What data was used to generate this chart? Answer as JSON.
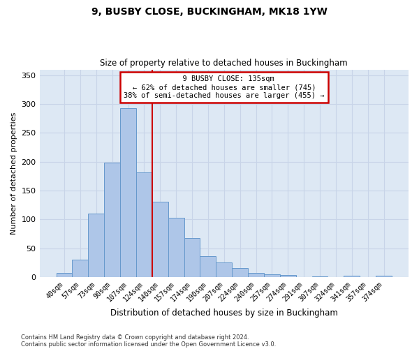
{
  "title_line1": "9, BUSBY CLOSE, BUCKINGHAM, MK18 1YW",
  "title_line2": "Size of property relative to detached houses in Buckingham",
  "xlabel": "Distribution of detached houses by size in Buckingham",
  "ylabel": "Number of detached properties",
  "annotation_line1": "  9 BUSBY CLOSE: 135sqm",
  "annotation_line2": "← 62% of detached houses are smaller (745)",
  "annotation_line3": "38% of semi-detached houses are larger (455) →",
  "footer_line1": "Contains HM Land Registry data © Crown copyright and database right 2024.",
  "footer_line2": "Contains public sector information licensed under the Open Government Licence v3.0.",
  "categories": [
    "40sqm",
    "57sqm",
    "73sqm",
    "90sqm",
    "107sqm",
    "124sqm",
    "140sqm",
    "157sqm",
    "174sqm",
    "190sqm",
    "207sqm",
    "224sqm",
    "240sqm",
    "257sqm",
    "274sqm",
    "291sqm",
    "307sqm",
    "324sqm",
    "341sqm",
    "357sqm",
    "374sqm"
  ],
  "values": [
    7,
    30,
    110,
    198,
    293,
    181,
    131,
    103,
    68,
    36,
    25,
    16,
    7,
    5,
    3,
    0,
    1,
    0,
    2,
    0,
    2
  ],
  "bar_color": "#aec6e8",
  "bar_edge_color": "#6699cc",
  "vline_x_index": 5.5,
  "vline_color": "#cc0000",
  "annotation_box_color": "#cc0000",
  "annotation_fill": "#ffffff",
  "grid_color": "#c8d4e8",
  "background_color": "#dde8f4",
  "ylim": [
    0,
    360
  ],
  "yticks": [
    0,
    50,
    100,
    150,
    200,
    250,
    300,
    350
  ]
}
